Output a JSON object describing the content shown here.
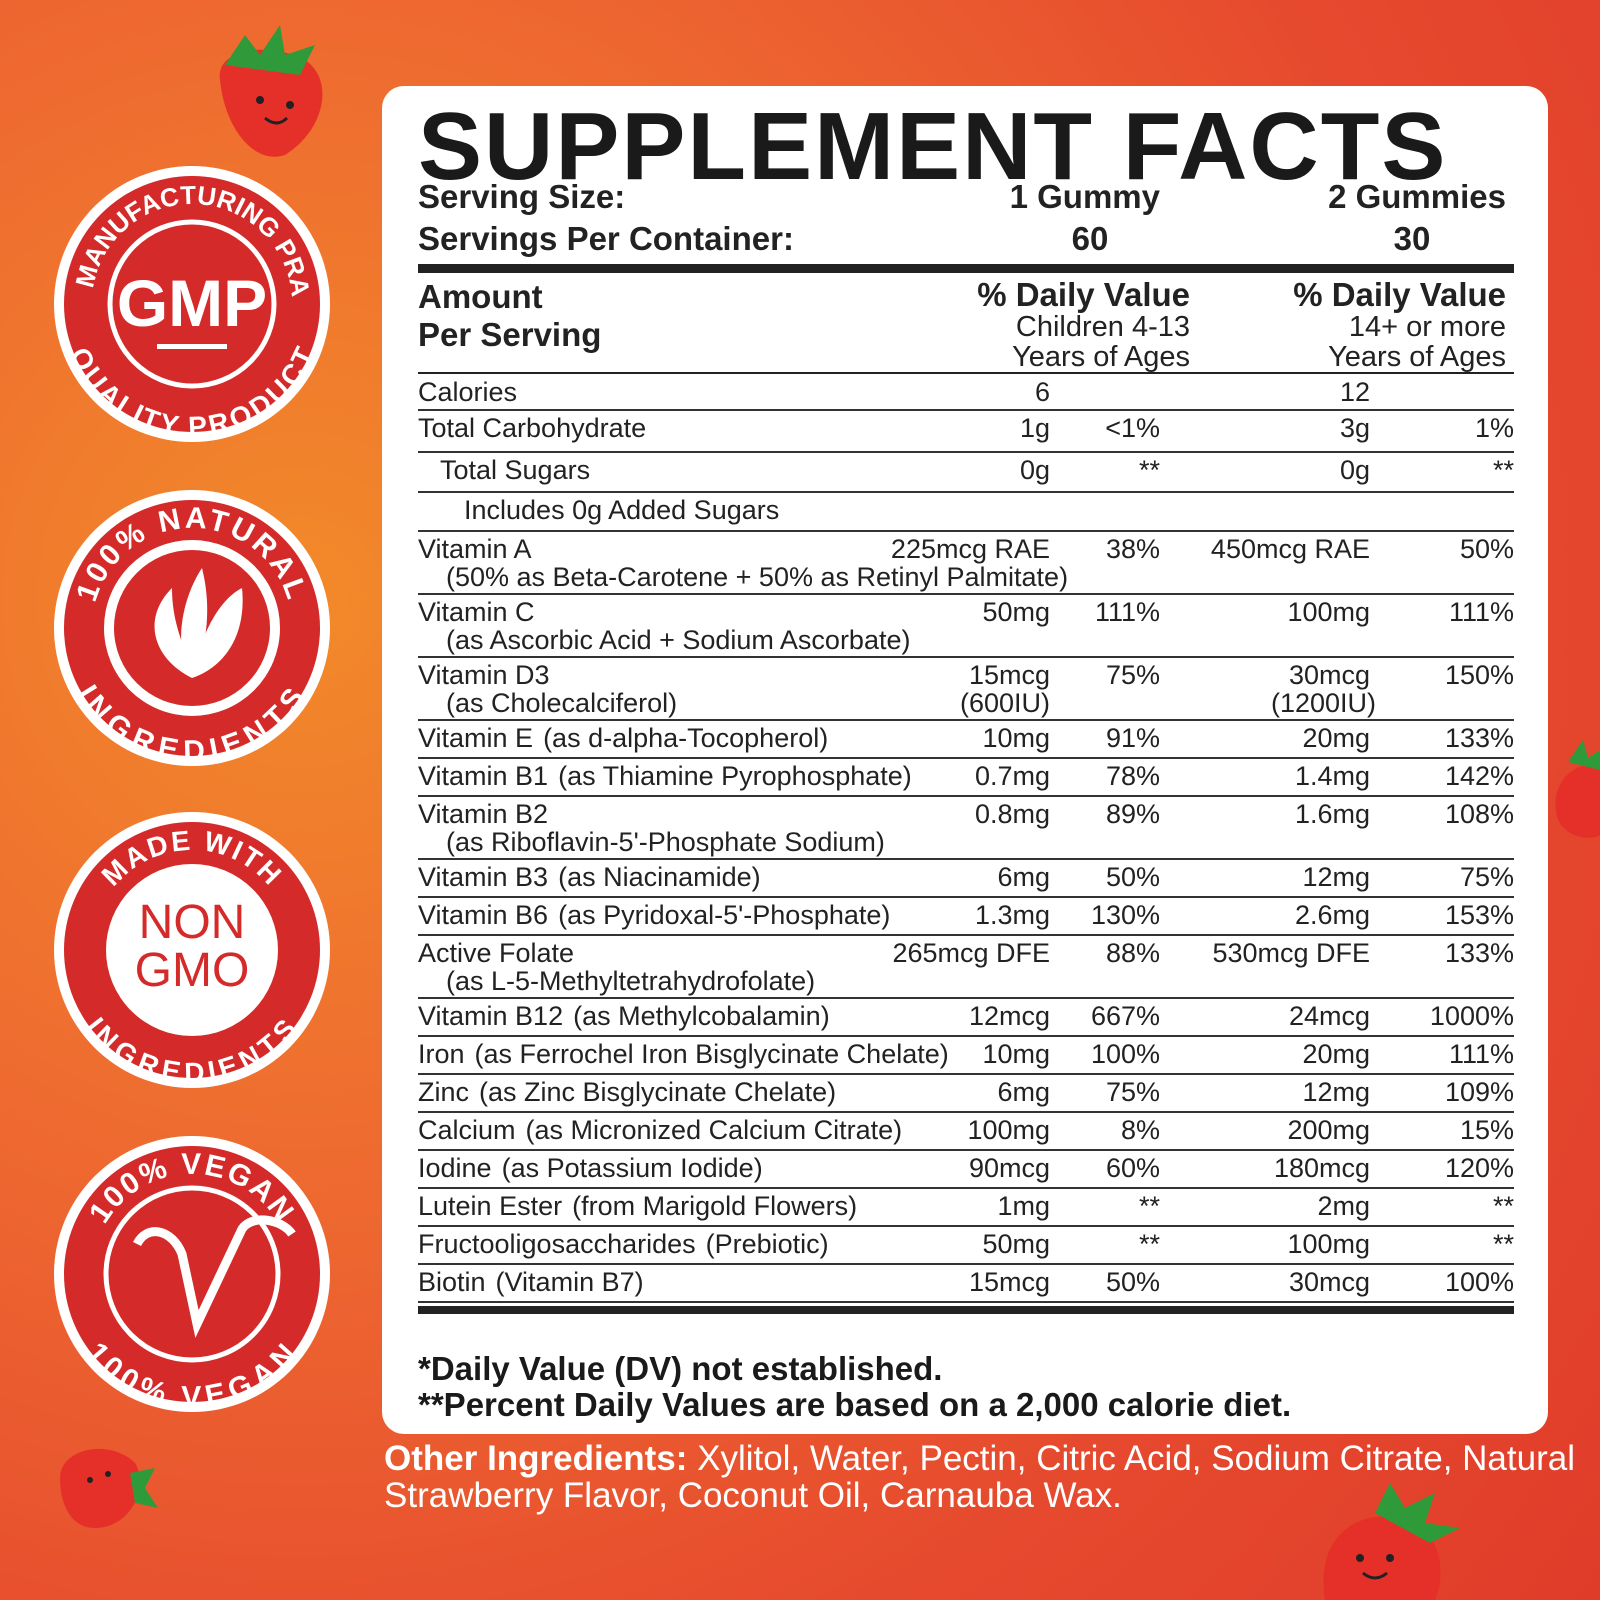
{
  "title": "SUPPLEMENT FACTS",
  "serving": {
    "label": "Serving Size:",
    "col1": "1 Gummy",
    "col2": "2 Gummies"
  },
  "servings_per": {
    "label": "Servings Per Container:",
    "col1": "60",
    "col2": "30"
  },
  "header": {
    "amount": "Amount",
    "per_serving": "Per Serving",
    "dv": "% Daily Value",
    "children": "Children 4-13",
    "adults": "14+ or more",
    "years": "Years of Ages"
  },
  "rows": [
    {
      "name": "Calories",
      "amt1": "6",
      "dv1": "",
      "amt2": "12",
      "dv2": ""
    },
    {
      "name": "Total Carbohydrate",
      "amt1": "1g",
      "dv1": "<1%",
      "amt2": "3g",
      "dv2": "1%"
    },
    {
      "name": "Total Sugars",
      "indent": 1,
      "amt1": "0g",
      "dv1": "**",
      "amt2": "0g",
      "dv2": "**"
    },
    {
      "name": "Includes 0g Added Sugars",
      "indent": 2,
      "amt1": "",
      "dv1": "",
      "amt2": "",
      "dv2": ""
    },
    {
      "name": "Vitamin A",
      "sub": "(50% as Beta-Carotene + 50% as Retinyl Palmitate)",
      "amt1": "225mcg RAE",
      "dv1": "38%",
      "amt2": "450mcg RAE",
      "dv2": "50%"
    },
    {
      "name": "Vitamin C",
      "sub": "(as Ascorbic Acid + Sodium Ascorbate)",
      "amt1": "50mg",
      "dv1": "111%",
      "amt2": "100mg",
      "dv2": "111%"
    },
    {
      "name": "Vitamin D3",
      "sub": "(as Cholecalciferol)",
      "amt1": "15mcg",
      "amt1b": "(600IU)",
      "dv1": "75%",
      "amt2": "30mcg",
      "amt2b": "(1200IU)",
      "dv2": "150%"
    },
    {
      "name": "Vitamin E",
      "note": "(as d-alpha-Tocopherol)",
      "amt1": "10mg",
      "dv1": "91%",
      "amt2": "20mg",
      "dv2": "133%"
    },
    {
      "name": "Vitamin B1",
      "note": "(as Thiamine Pyrophosphate)",
      "amt1": "0.7mg",
      "dv1": "78%",
      "amt2": "1.4mg",
      "dv2": "142%"
    },
    {
      "name": "Vitamin B2",
      "sub": "(as Riboflavin-5'-Phosphate Sodium)",
      "amt1": "0.8mg",
      "dv1": "89%",
      "amt2": "1.6mg",
      "dv2": "108%"
    },
    {
      "name": "Vitamin B3",
      "note": "(as Niacinamide)",
      "amt1": "6mg",
      "dv1": "50%",
      "amt2": "12mg",
      "dv2": "75%"
    },
    {
      "name": "Vitamin B6",
      "note": "(as Pyridoxal-5'-Phosphate)",
      "amt1": "1.3mg",
      "dv1": "130%",
      "amt2": "2.6mg",
      "dv2": "153%"
    },
    {
      "name": "Active Folate",
      "sub": "(as L-5-Methyltetrahydrofolate)",
      "amt1": "265mcg DFE",
      "dv1": "88%",
      "amt2": "530mcg DFE",
      "dv2": "133%"
    },
    {
      "name": "Vitamin B12",
      "note": "(as Methylcobalamin)",
      "amt1": "12mcg",
      "dv1": "667%",
      "amt2": "24mcg",
      "dv2": "1000%"
    },
    {
      "name": "Iron",
      "note": "(as Ferrochel Iron Bisglycinate Chelate)",
      "amt1": "10mg",
      "dv1": "100%",
      "amt2": "20mg",
      "dv2": "111%"
    },
    {
      "name": "Zinc",
      "note": "(as Zinc Bisglycinate Chelate)",
      "amt1": "6mg",
      "dv1": "75%",
      "amt2": "12mg",
      "dv2": "109%"
    },
    {
      "name": "Calcium",
      "note": "(as Micronized Calcium Citrate)",
      "amt1": "100mg",
      "dv1": "8%",
      "amt2": "200mg",
      "dv2": "15%"
    },
    {
      "name": "Iodine",
      "note": "(as Potassium Iodide)",
      "amt1": "90mcg",
      "dv1": "60%",
      "amt2": "180mcg",
      "dv2": "120%"
    },
    {
      "name": "Lutein Ester",
      "note": "(from Marigold Flowers)",
      "amt1": "1mg",
      "dv1": "**",
      "amt2": "2mg",
      "dv2": "**"
    },
    {
      "name": "Fructooligosaccharides",
      "note": "(Prebiotic)",
      "amt1": "50mg",
      "dv1": "**",
      "amt2": "100mg",
      "dv2": "**"
    },
    {
      "name": "Biotin",
      "note": "(Vitamin B7)",
      "amt1": "15mcg",
      "dv1": "50%",
      "amt2": "30mcg",
      "dv2": "100%"
    }
  ],
  "footnotes": [
    "*Daily Value (DV) not established.",
    "**Percent Daily Values are based on a 2,000 calorie diet."
  ],
  "other": {
    "label": "Other Ingredients:",
    "text": " Xylitol, Water, Pectin, Citric Acid, Sodium Citrate, Natural Strawberry Flavor, Coconut Oil, Carnauba Wax."
  },
  "badges": [
    {
      "top": "GOOD MANUFACTURING PRACTICE",
      "center": "GMP",
      "bottom": "QUALITY PRODUCT"
    },
    {
      "top": "100% NATURAL",
      "bottom": "INGREDIENTS"
    },
    {
      "top": "MADE WITH",
      "center1": "NON",
      "center2": "GMO",
      "bottom": "INGREDIENTS"
    },
    {
      "top": "100% VEGAN",
      "bottom": "100% VEGAN"
    }
  ],
  "colors": {
    "badge_red": "#d42a2a",
    "background": "#e64a2e"
  }
}
